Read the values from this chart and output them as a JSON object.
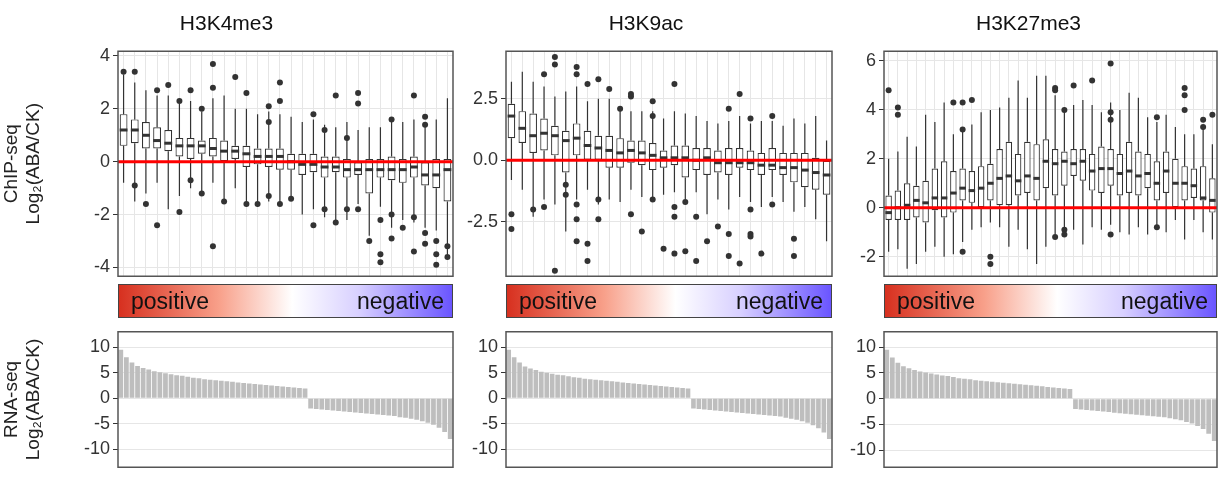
{
  "chart_data": [
    {
      "type": "box",
      "title": "H3K4me3",
      "ylabel": "ChIP-seq\nLog₂(ABA/CK)",
      "color": "#333333",
      "categories": [
        null,
        null,
        null,
        null,
        null,
        null,
        null,
        null,
        null,
        null,
        null,
        null,
        null,
        null,
        null,
        null,
        null,
        null,
        null,
        null,
        null,
        null,
        null,
        null,
        null,
        null,
        null,
        null,
        null,
        null
      ],
      "ylim": [
        -4.33,
        4.18
      ],
      "yticks": [
        -4,
        -2,
        0,
        2,
        4
      ],
      "grid": true,
      "tick_labels": "y",
      "ref_lines": [
        {
          "axis": "y",
          "value": 0,
          "color": "#ff0000"
        }
      ],
      "boxes": [
        {
          "low": -0.8,
          "q1": 0.6,
          "median": 1.2,
          "q3": 1.8,
          "high": 3.3,
          "outliers": [
            3.4
          ]
        },
        {
          "low": -1.5,
          "q1": 0.7,
          "median": 1.2,
          "q3": 1.6,
          "high": 3.0,
          "outliers": [
            3.4,
            -0.9
          ]
        },
        {
          "low": -1.2,
          "q1": 0.5,
          "median": 1.0,
          "q3": 1.5,
          "high": 2.7,
          "outliers": [
            -1.6
          ]
        },
        {
          "low": -0.8,
          "q1": 0.5,
          "median": 0.8,
          "q3": 1.3,
          "high": 2.5,
          "outliers": [
            2.7,
            -2.4
          ]
        },
        {
          "low": -1.8,
          "q1": 0.4,
          "median": 0.7,
          "q3": 1.2,
          "high": 2.5,
          "outliers": [
            2.9
          ]
        },
        {
          "low": -1.3,
          "q1": 0.2,
          "median": 0.6,
          "q3": 0.9,
          "high": 2.2,
          "outliers": [
            2.3,
            -1.9
          ]
        },
        {
          "low": -1.0,
          "q1": 0.1,
          "median": 0.6,
          "q3": 0.9,
          "high": 2.3,
          "outliers": [
            2.7,
            -0.7
          ]
        },
        {
          "low": -1.3,
          "q1": 0.3,
          "median": 0.6,
          "q3": 0.8,
          "high": 1.9,
          "outliers": [
            2.0,
            -1.2
          ]
        },
        {
          "low": -0.8,
          "q1": 0.2,
          "median": 0.5,
          "q3": 0.9,
          "high": 2.4,
          "outliers": [
            3.7,
            2.8,
            -3.2
          ]
        },
        {
          "low": -1.5,
          "q1": 0.0,
          "median": 0.4,
          "q3": 0.8,
          "high": 2.5,
          "outliers": [
            -1.5
          ]
        },
        {
          "low": -1.0,
          "q1": 0.1,
          "median": 0.4,
          "q3": 0.6,
          "high": 2.0,
          "outliers": [
            3.2
          ]
        },
        {
          "low": -1.6,
          "q1": -0.2,
          "median": 0.3,
          "q3": 0.6,
          "high": 2.0,
          "outliers": [
            2.6,
            -1.6
          ]
        },
        {
          "low": -1.7,
          "q1": -0.1,
          "median": 0.2,
          "q3": 0.5,
          "high": 1.8,
          "outliers": [
            -1.6
          ]
        },
        {
          "low": -1.5,
          "q1": -0.2,
          "median": 0.2,
          "q3": 0.5,
          "high": 1.9,
          "outliers": [
            2.1,
            1.5,
            -1.3
          ]
        },
        {
          "low": -1.6,
          "q1": -0.3,
          "median": 0.2,
          "q3": 0.5,
          "high": 1.8,
          "outliers": [
            3.0,
            2.3,
            -1.6
          ]
        },
        {
          "low": -1.4,
          "q1": -0.3,
          "median": 0.0,
          "q3": 0.3,
          "high": 1.7,
          "outliers": [
            -1.4
          ]
        },
        {
          "low": -2.0,
          "q1": -0.5,
          "median": -0.1,
          "q3": 0.3,
          "high": 1.5
        },
        {
          "low": -1.8,
          "q1": -0.4,
          "median": -0.1,
          "q3": 0.3,
          "high": 1.6,
          "outliers": [
            1.8,
            -2.4
          ]
        },
        {
          "low": -2.1,
          "q1": -0.6,
          "median": -0.2,
          "q3": 0.2,
          "high": 1.4,
          "outliers": [
            1.2,
            -1.8
          ]
        },
        {
          "low": -2.2,
          "q1": -0.4,
          "median": -0.2,
          "q3": 0.2,
          "high": 1.3,
          "outliers": [
            2.5,
            -2.3
          ]
        },
        {
          "low": -2.2,
          "q1": -0.6,
          "median": -0.3,
          "q3": 0.1,
          "high": 1.5,
          "outliers": [
            0.9,
            -1.8
          ]
        },
        {
          "low": -1.6,
          "q1": -0.5,
          "median": -0.3,
          "q3": 0.0,
          "high": 1.2,
          "outliers": [
            2.6,
            2.2,
            -1.8
          ]
        },
        {
          "low": -2.8,
          "q1": -1.2,
          "median": -0.3,
          "q3": 0.1,
          "high": 1.3,
          "outliers": [
            -3.0
          ]
        },
        {
          "low": -1.7,
          "q1": -0.6,
          "median": -0.3,
          "q3": 0.1,
          "high": 1.3,
          "outliers": [
            -2.2,
            -3.5,
            -3.8
          ]
        },
        {
          "low": -2.5,
          "q1": -0.7,
          "median": -0.3,
          "q3": 0.2,
          "high": 1.5,
          "outliers": [
            1.6,
            -2.0,
            -2.9
          ]
        },
        {
          "low": -2.2,
          "q1": -0.8,
          "median": -0.3,
          "q3": 0.1,
          "high": 1.5,
          "outliers": [
            -2.5
          ]
        },
        {
          "low": -2.3,
          "q1": -0.6,
          "median": -0.2,
          "q3": 0.2,
          "high": 1.6,
          "outliers": [
            2.5,
            -2.1,
            -3.4
          ]
        },
        {
          "low": -2.5,
          "q1": -0.9,
          "median": -0.5,
          "q3": 0.0,
          "high": 1.5,
          "outliers": [
            1.7,
            1.4,
            -2.7,
            -3.1
          ]
        },
        {
          "low": -2.6,
          "q1": -1.0,
          "median": -0.5,
          "q3": 0.1,
          "high": 1.6,
          "outliers": [
            -3.0,
            -3.5,
            -3.9
          ]
        },
        {
          "low": -3.7,
          "q1": -1.5,
          "median": -0.3,
          "q3": 0.1,
          "high": 2.4,
          "outliers": [
            -3.2,
            -3.6
          ]
        }
      ]
    },
    {
      "type": "box",
      "title": "H3K9ac",
      "color": "#333333",
      "categories": [
        null,
        null,
        null,
        null,
        null,
        null,
        null,
        null,
        null,
        null,
        null,
        null,
        null,
        null,
        null,
        null,
        null,
        null,
        null,
        null,
        null,
        null,
        null,
        null,
        null,
        null,
        null,
        null,
        null,
        null
      ],
      "ylim": [
        -4.72,
        4.44
      ],
      "yticks": [
        -2.5,
        {
          "value": 0,
          "label": "0.0"
        },
        2.5
      ],
      "grid": true,
      "tick_labels": "y",
      "ref_lines": [
        {
          "axis": "y",
          "value": 0,
          "color": "#ff0000"
        }
      ],
      "boxes": [
        {
          "low": -0.8,
          "q1": 0.9,
          "median": 1.8,
          "q3": 2.3,
          "high": 3.2,
          "outliers": [
            -2.2,
            -2.8
          ]
        },
        {
          "low": -1.2,
          "q1": 0.7,
          "median": 1.3,
          "q3": 2.0,
          "high": 3.6
        },
        {
          "low": -2.3,
          "q1": 0.3,
          "median": 1.0,
          "q3": 1.9,
          "high": 3.2,
          "outliers": [
            -2.0
          ]
        },
        {
          "low": -1.6,
          "q1": 0.4,
          "median": 1.1,
          "q3": 1.7,
          "high": 3.0,
          "outliers": [
            3.5,
            -1.9
          ]
        },
        {
          "low": -1.8,
          "q1": 0.2,
          "median": 1.0,
          "q3": 1.4,
          "high": 2.6,
          "outliers": [
            4.2,
            3.9,
            -4.5
          ]
        },
        {
          "low": -2.9,
          "q1": -0.5,
          "median": 0.8,
          "q3": 1.2,
          "high": 2.8,
          "outliers": [
            -1.0,
            -1.4
          ]
        },
        {
          "low": -1.6,
          "q1": 0.2,
          "median": 0.9,
          "q3": 1.5,
          "high": 3.0,
          "outliers": [
            3.8,
            3.5,
            -1.8,
            -2.4,
            -3.3
          ]
        },
        {
          "low": -1.2,
          "q1": 0.0,
          "median": 0.6,
          "q3": 1.2,
          "high": 2.4,
          "outliers": [
            3.1,
            -4.1,
            -3.4
          ]
        },
        {
          "low": -1.8,
          "q1": 0.0,
          "median": 0.5,
          "q3": 1.0,
          "high": 2.5,
          "outliers": [
            3.3,
            -1.6,
            -2.4
          ]
        },
        {
          "low": -1.6,
          "q1": -0.3,
          "median": 0.4,
          "q3": 1.0,
          "high": 2.5,
          "outliers": [
            2.9
          ]
        },
        {
          "low": -1.7,
          "q1": -0.3,
          "median": 0.3,
          "q3": 0.9,
          "high": 2.2,
          "outliers": [
            2.1
          ]
        },
        {
          "low": -1.2,
          "q1": -0.1,
          "median": 0.4,
          "q3": 0.8,
          "high": 2.0,
          "outliers": [
            2.6,
            2.7,
            -2.2
          ]
        },
        {
          "low": -1.5,
          "q1": -0.2,
          "median": 0.3,
          "q3": 0.8,
          "high": 2.0,
          "outliers": [
            -2.9
          ]
        },
        {
          "low": -1.7,
          "q1": -0.4,
          "median": 0.2,
          "q3": 0.7,
          "high": 2.0,
          "outliers": [
            2.4,
            1.8,
            -1.6
          ]
        },
        {
          "low": -1.4,
          "q1": -0.3,
          "median": 0.1,
          "q3": 0.4,
          "high": 1.7,
          "outliers": [
            -3.6
          ]
        },
        {
          "low": -1.3,
          "q1": -0.2,
          "median": 0.1,
          "q3": 0.6,
          "high": 2.0,
          "outliers": [
            3.1,
            -1.9,
            -2.3,
            -3.8
          ]
        },
        {
          "low": -1.6,
          "q1": -0.7,
          "median": 0.1,
          "q3": 0.6,
          "high": 1.9,
          "outliers": [
            -1.7,
            -3.7
          ]
        },
        {
          "low": -1.3,
          "q1": -0.4,
          "median": 0.0,
          "q3": 0.5,
          "high": 1.8,
          "outliers": [
            -2.3,
            -4.1
          ]
        },
        {
          "low": -2.2,
          "q1": -0.6,
          "median": 0.1,
          "q3": 0.5,
          "high": 1.6,
          "outliers": [
            -3.3
          ]
        },
        {
          "low": -1.6,
          "q1": -0.5,
          "median": -0.1,
          "q3": 0.4,
          "high": 1.5,
          "outliers": [
            -2.7
          ]
        },
        {
          "low": -2.0,
          "q1": -0.6,
          "median": -0.1,
          "q3": 0.5,
          "high": 1.6,
          "outliers": [
            2.1,
            -3.0,
            -3.9
          ]
        },
        {
          "low": -1.5,
          "q1": -0.3,
          "median": -0.1,
          "q3": 0.5,
          "high": 1.8,
          "outliers": [
            2.7,
            -4.2
          ]
        },
        {
          "low": -1.7,
          "q1": -0.4,
          "median": -0.1,
          "q3": 0.4,
          "high": 1.5,
          "outliers": [
            1.7,
            -3.0,
            -2.0,
            -3.1
          ]
        },
        {
          "low": -1.9,
          "q1": -0.6,
          "median": -0.2,
          "q3": 0.3,
          "high": 1.6,
          "outliers": [
            -3.8
          ]
        },
        {
          "low": -1.5,
          "q1": -0.4,
          "median": -0.2,
          "q3": 0.5,
          "high": 1.6,
          "outliers": [
            1.8,
            -1.8
          ]
        },
        {
          "low": -1.7,
          "q1": -0.6,
          "median": -0.3,
          "q3": 0.3,
          "high": 1.4
        },
        {
          "low": -2.1,
          "q1": -0.9,
          "median": -0.3,
          "q3": 0.3,
          "high": 1.7,
          "outliers": [
            -3.2,
            -3.9
          ]
        },
        {
          "low": -1.9,
          "q1": -1.1,
          "median": -0.4,
          "q3": 0.3,
          "high": 1.5
        },
        {
          "low": -2.4,
          "q1": -1.2,
          "median": -0.5,
          "q3": 0.1,
          "high": 1.8
        },
        {
          "low": -3.3,
          "q1": -1.4,
          "median": -0.6,
          "q3": 0.0,
          "high": 0.8
        }
      ]
    },
    {
      "type": "box",
      "title": "H3K27me3",
      "color": "#333333",
      "categories": [
        null,
        null,
        null,
        null,
        null,
        null,
        null,
        null,
        null,
        null,
        null,
        null,
        null,
        null,
        null,
        null,
        null,
        null,
        null,
        null,
        null,
        null,
        null,
        null,
        null,
        null,
        null,
        null,
        null,
        null,
        null,
        null,
        null,
        null,
        null,
        null
      ],
      "ylim": [
        -2.8,
        6.4
      ],
      "yticks": [
        -2,
        0,
        2,
        4,
        6
      ],
      "grid": true,
      "tick_labels": "y",
      "ref_lines": [
        {
          "axis": "y",
          "value": 0,
          "color": "#ff0000"
        }
      ],
      "boxes": [
        {
          "low": -1.8,
          "q1": -0.5,
          "median": -0.2,
          "q3": 0.5,
          "high": 2.0,
          "outliers": [
            4.8
          ]
        },
        {
          "low": -1.7,
          "q1": -0.5,
          "median": 0.0,
          "q3": 0.7,
          "high": 2.3,
          "outliers": [
            4.1,
            3.8
          ]
        },
        {
          "low": -2.5,
          "q1": -0.5,
          "median": 0.1,
          "q3": 1.0,
          "high": 2.9
        },
        {
          "low": -2.3,
          "q1": -0.4,
          "median": 0.3,
          "q3": 0.9,
          "high": 2.5
        },
        {
          "low": -1.8,
          "q1": -0.6,
          "median": 0.2,
          "q3": 1.1,
          "high": 3.8
        },
        {
          "low": -1.6,
          "q1": -0.1,
          "median": 0.4,
          "q3": 1.6,
          "high": 3.5
        },
        {
          "low": -2.0,
          "q1": -0.4,
          "median": 0.4,
          "q3": 1.9,
          "high": 4.3
        },
        {
          "low": -1.9,
          "q1": -0.2,
          "median": 0.6,
          "q3": 1.5,
          "high": 3.0,
          "outliers": [
            4.3
          ]
        },
        {
          "low": -1.4,
          "q1": 0.3,
          "median": 0.8,
          "q3": 1.6,
          "high": 3.2,
          "outliers": [
            4.3,
            3.2,
            -1.8
          ]
        },
        {
          "low": -0.9,
          "q1": 0.2,
          "median": 0.7,
          "q3": 1.5,
          "high": 3.4,
          "outliers": [
            4.4
          ]
        },
        {
          "low": -0.8,
          "q1": 0.0,
          "median": 0.8,
          "q3": 1.7,
          "high": 3.9
        },
        {
          "low": -0.6,
          "q1": 0.3,
          "median": 1.0,
          "q3": 1.8,
          "high": 4.0,
          "outliers": [
            -2.0,
            -2.3
          ]
        },
        {
          "low": -0.8,
          "q1": 0.1,
          "median": 1.2,
          "q3": 2.4,
          "high": 4.1
        },
        {
          "low": -1.6,
          "q1": 0.1,
          "median": 1.3,
          "q3": 2.7,
          "high": 4.5
        },
        {
          "low": -0.9,
          "q1": 0.5,
          "median": 1.1,
          "q3": 2.2,
          "high": 5.2
        },
        {
          "low": -1.7,
          "q1": 0.6,
          "median": 1.3,
          "q3": 2.7,
          "high": 4.5
        },
        {
          "low": -2.3,
          "q1": 0.3,
          "median": 1.2,
          "q3": 2.6,
          "high": 5.4
        },
        {
          "low": -1.6,
          "q1": 0.8,
          "median": 1.9,
          "q3": 2.8,
          "high": 5.4
        },
        {
          "low": -1.1,
          "q1": 0.5,
          "median": 1.8,
          "q3": 2.4,
          "high": 4.6,
          "outliers": [
            4.9,
            4.8,
            -1.2
          ]
        },
        {
          "low": -0.9,
          "q1": 0.9,
          "median": 1.9,
          "q3": 2.3,
          "high": 4.1,
          "outliers": [
            4.0,
            -0.9,
            -1.1
          ]
        },
        {
          "low": -0.9,
          "q1": 1.3,
          "median": 1.8,
          "q3": 2.4,
          "high": 4.2,
          "outliers": [
            5.0
          ]
        },
        {
          "low": -1.5,
          "q1": 1.1,
          "median": 1.9,
          "q3": 2.4,
          "high": 4.4
        },
        {
          "low": -0.8,
          "q1": 0.7,
          "median": 1.5,
          "q3": 2.2,
          "high": 4.2,
          "outliers": [
            5.2
          ]
        },
        {
          "low": -0.9,
          "q1": 0.6,
          "median": 1.6,
          "q3": 2.5,
          "high": 3.9
        },
        {
          "low": -0.7,
          "q1": 0.9,
          "median": 1.6,
          "q3": 2.4,
          "high": 4.3,
          "outliers": [
            5.9,
            3.9,
            3.6,
            -1.1
          ]
        },
        {
          "low": -1.0,
          "q1": 0.5,
          "median": 1.4,
          "q3": 2.2,
          "high": 4.0
        },
        {
          "low": -1.1,
          "q1": 0.6,
          "median": 1.5,
          "q3": 2.7,
          "high": 4.7
        },
        {
          "low": -0.8,
          "q1": 0.5,
          "median": 1.3,
          "q3": 2.3,
          "high": 4.5
        },
        {
          "low": -1.1,
          "q1": 0.8,
          "median": 1.4,
          "q3": 2.2,
          "high": 3.7
        },
        {
          "low": -0.9,
          "q1": 0.3,
          "median": 1.0,
          "q3": 1.9,
          "high": 3.5,
          "outliers": [
            3.7,
            -0.8
          ]
        },
        {
          "low": -1.0,
          "q1": 0.6,
          "median": 1.5,
          "q3": 2.3,
          "high": 3.8
        },
        {
          "low": -0.5,
          "q1": 0.0,
          "median": 1.0,
          "q3": 2.0,
          "high": 3.3
        },
        {
          "low": -1.3,
          "q1": 0.3,
          "median": 1.0,
          "q3": 1.7,
          "high": 3.0,
          "outliers": [
            4.9,
            4.6,
            4.0
          ]
        },
        {
          "low": -0.5,
          "q1": 0.4,
          "median": 0.9,
          "q3": 1.6,
          "high": 3.0
        },
        {
          "low": -1.0,
          "q1": 0.3,
          "median": 0.4,
          "q3": 1.7,
          "high": 3.3,
          "outliers": [
            3.6,
            3.3
          ]
        },
        {
          "low": -1.3,
          "q1": -0.2,
          "median": 0.3,
          "q3": 1.2,
          "high": 2.6,
          "outliers": [
            3.8
          ]
        }
      ]
    },
    {
      "type": "bar",
      "ylabel": "RNA-seq\nLog₂(ABA/CK)",
      "color": "#bebebe",
      "annotations": [
        "positive",
        "negative"
      ],
      "ylim": [
        -13.5,
        13
      ],
      "yticks": [
        -10,
        -5,
        0,
        5,
        10
      ],
      "grid": "y",
      "tick_labels": "y",
      "categories": [
        null,
        null,
        null,
        null,
        null,
        null,
        null,
        null,
        null,
        null,
        null,
        null,
        null,
        null,
        null,
        null,
        null,
        null,
        null,
        null,
        null,
        null,
        null,
        null,
        null,
        null,
        null,
        null,
        null,
        null,
        null,
        null,
        null,
        null,
        null,
        null,
        null,
        null,
        null,
        null,
        null,
        null,
        null,
        null,
        null,
        null,
        null,
        null,
        null,
        null,
        null,
        null,
        null,
        null,
        null,
        null,
        null,
        null,
        null,
        null
      ],
      "values": [
        9.5,
        8.0,
        7.0,
        6.3,
        5.9,
        5.6,
        5.3,
        5.1,
        4.9,
        4.7,
        4.5,
        4.4,
        4.2,
        4.0,
        3.9,
        3.7,
        3.6,
        3.5,
        3.4,
        3.3,
        3.2,
        3.1,
        3.0,
        2.9,
        2.8,
        2.7,
        2.6,
        2.5,
        2.4,
        2.3,
        2.2,
        2.1,
        2.0,
        1.9,
        -2.0,
        -2.1,
        -2.2,
        -2.3,
        -2.4,
        -2.5,
        -2.6,
        -2.7,
        -2.8,
        -2.9,
        -3.0,
        -3.1,
        -3.2,
        -3.3,
        -3.4,
        -3.5,
        -3.7,
        -3.8,
        -4.0,
        -4.2,
        -4.5,
        -4.8,
        -5.2,
        -5.8,
        -6.6,
        -8.0
      ]
    },
    {
      "type": "bar",
      "color": "#bebebe",
      "annotations": [
        "positive",
        "negative"
      ],
      "ylim": [
        -13.5,
        13
      ],
      "yticks": [
        -10,
        -5,
        0,
        5,
        10
      ],
      "grid": "y",
      "tick_labels": "y",
      "categories": [
        null,
        null,
        null,
        null,
        null,
        null,
        null,
        null,
        null,
        null,
        null,
        null,
        null,
        null,
        null,
        null,
        null,
        null,
        null,
        null,
        null,
        null,
        null,
        null,
        null,
        null,
        null,
        null,
        null,
        null,
        null,
        null,
        null,
        null,
        null,
        null,
        null,
        null,
        null,
        null,
        null,
        null,
        null,
        null,
        null,
        null,
        null,
        null,
        null,
        null,
        null,
        null,
        null,
        null,
        null,
        null,
        null,
        null,
        null,
        null
      ],
      "values": [
        9.5,
        8.0,
        7.0,
        6.2,
        5.8,
        5.5,
        5.2,
        5.0,
        4.8,
        4.6,
        4.5,
        4.3,
        4.1,
        4.0,
        3.8,
        3.7,
        3.6,
        3.5,
        3.4,
        3.3,
        3.2,
        3.1,
        3.0,
        2.9,
        2.8,
        2.7,
        2.6,
        2.5,
        2.4,
        2.3,
        2.2,
        2.1,
        2.0,
        1.9,
        -2.0,
        -2.1,
        -2.2,
        -2.3,
        -2.4,
        -2.5,
        -2.6,
        -2.7,
        -2.8,
        -2.9,
        -3.0,
        -3.1,
        -3.2,
        -3.3,
        -3.4,
        -3.5,
        -3.6,
        -3.8,
        -4.0,
        -4.2,
        -4.5,
        -4.8,
        -5.3,
        -5.9,
        -6.7,
        -8.0
      ]
    },
    {
      "type": "bar",
      "color": "#bebebe",
      "annotations": [
        "positive",
        "negative"
      ],
      "ylim": [
        -13.3,
        13
      ],
      "yticks": [
        -10,
        -5,
        0,
        5,
        10
      ],
      "grid": "y",
      "tick_labels": "y",
      "categories": [
        null,
        null,
        null,
        null,
        null,
        null,
        null,
        null,
        null,
        null,
        null,
        null,
        null,
        null,
        null,
        null,
        null,
        null,
        null,
        null,
        null,
        null,
        null,
        null,
        null,
        null,
        null,
        null,
        null,
        null,
        null,
        null,
        null,
        null,
        null,
        null,
        null,
        null,
        null,
        null,
        null,
        null,
        null,
        null,
        null,
        null,
        null,
        null,
        null,
        null,
        null,
        null,
        null,
        null,
        null,
        null,
        null,
        null,
        null,
        null
      ],
      "values": [
        9.5,
        8.0,
        7.0,
        6.3,
        5.9,
        5.6,
        5.3,
        5.1,
        4.9,
        4.7,
        4.5,
        4.4,
        4.2,
        4.0,
        3.9,
        3.8,
        3.6,
        3.5,
        3.4,
        3.3,
        3.2,
        3.1,
        3.0,
        2.9,
        2.8,
        2.7,
        2.6,
        2.5,
        2.4,
        2.3,
        2.2,
        2.1,
        2.0,
        1.9,
        -2.0,
        -2.1,
        -2.2,
        -2.3,
        -2.4,
        -2.5,
        -2.6,
        -2.7,
        -2.8,
        -2.9,
        -3.0,
        -3.1,
        -3.2,
        -3.3,
        -3.4,
        -3.5,
        -3.6,
        -3.8,
        -4.0,
        -4.2,
        -4.5,
        -4.8,
        -5.3,
        -5.9,
        -6.8,
        -8.2
      ]
    }
  ]
}
